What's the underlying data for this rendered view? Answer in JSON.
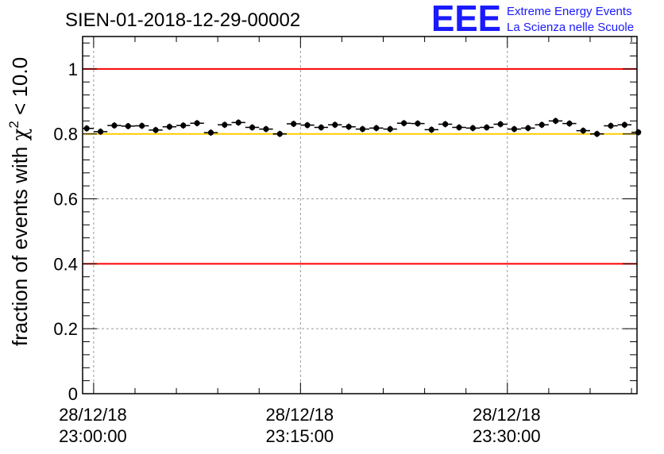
{
  "chart_data": {
    "type": "scatter",
    "title": "SIEN-01-2018-12-29-00002",
    "ylabel": "fraction of events with χ² < 10.0",
    "ylabel_main": "fraction of events with ",
    "ylabel_chi": "χ",
    "ylabel_sup": "2",
    "ylabel_tail": " < 10.0",
    "xlabel": "",
    "ylim": [
      0,
      1.1
    ],
    "xlim_minutes": [
      -0.8,
      39.4
    ],
    "x_ticks": [
      {
        "minutes": 0,
        "date": "28/12/18",
        "time": "23:00:00"
      },
      {
        "minutes": 15,
        "date": "28/12/18",
        "time": "23:15:00"
      },
      {
        "minutes": 30,
        "date": "28/12/18",
        "time": "23:30:00"
      }
    ],
    "y_ticks": [
      {
        "value": 0,
        "label": "0"
      },
      {
        "value": 0.2,
        "label": "0.2"
      },
      {
        "value": 0.4,
        "label": "0.4"
      },
      {
        "value": 0.6,
        "label": "0.6"
      },
      {
        "value": 0.8,
        "label": "0.8"
      },
      {
        "value": 1.0,
        "label": "1"
      }
    ],
    "reference_lines": [
      {
        "value": 1.0,
        "color": "#ff0000"
      },
      {
        "value": 0.8,
        "color": "#ffcc00"
      },
      {
        "value": 0.4,
        "color": "#ff0000"
      }
    ],
    "grid": true,
    "marker_color": "#000000",
    "bin_width_minutes": 1,
    "series": [
      {
        "name": "fraction",
        "x": [
          -0.5,
          0.5,
          1.5,
          2.5,
          3.5,
          4.5,
          5.5,
          6.5,
          7.5,
          8.5,
          9.5,
          10.5,
          11.5,
          12.5,
          13.5,
          14.5,
          15.5,
          16.5,
          17.5,
          18.5,
          19.5,
          20.5,
          21.5,
          22.5,
          23.5,
          24.5,
          25.5,
          26.5,
          27.5,
          28.5,
          29.5,
          30.5,
          31.5,
          32.5,
          33.5,
          34.5,
          35.5,
          36.5,
          37.5,
          38.5,
          39.5
        ],
        "values": [
          0.817,
          0.807,
          0.826,
          0.824,
          0.825,
          0.812,
          0.822,
          0.826,
          0.833,
          0.804,
          0.828,
          0.835,
          0.82,
          0.815,
          0.8,
          0.831,
          0.827,
          0.82,
          0.828,
          0.822,
          0.815,
          0.818,
          0.815,
          0.833,
          0.832,
          0.813,
          0.83,
          0.82,
          0.818,
          0.82,
          0.83,
          0.815,
          0.818,
          0.828,
          0.84,
          0.832,
          0.81,
          0.8,
          0.825,
          0.828,
          0.805
        ]
      }
    ]
  },
  "logo": {
    "mark": "EEE",
    "line1": "Extreme Energy Events",
    "line2": "La Scienza nelle Scuole",
    "color": "#1a1aff"
  }
}
